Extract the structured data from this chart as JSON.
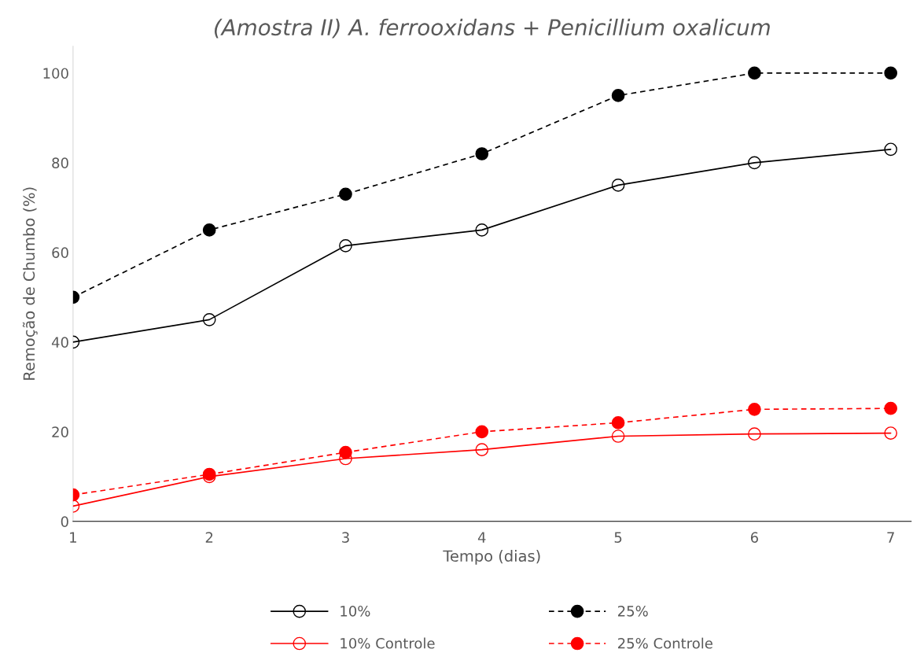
{
  "chart_data": {
    "type": "line",
    "title": "(Amostra II) A. ferrooxidans + Penicillium oxalicum",
    "xlabel": "Tempo (dias)",
    "ylabel": "Remoção de Chumbo (%)",
    "x": [
      1,
      2,
      3,
      4,
      5,
      6,
      7
    ],
    "series": [
      {
        "name": "10%",
        "color": "#000000",
        "marker": "circle",
        "line_style": "solid",
        "values": [
          40,
          45,
          61.5,
          65,
          75,
          80,
          83
        ]
      },
      {
        "name": "25%",
        "color": "#000000",
        "marker": "circle",
        "line_style": "dashed",
        "values": [
          50,
          65,
          73,
          82,
          95,
          100,
          100
        ]
      },
      {
        "name": "10% Controle",
        "color": "#ff0000",
        "marker": "circle",
        "line_style": "solid",
        "values": [
          3.4,
          10,
          14,
          16,
          19,
          19.5,
          19.7
        ]
      },
      {
        "name": "25% Controle",
        "color": "#ff0000",
        "marker": "circle",
        "line_style": "dashed",
        "values": [
          5.9,
          10.5,
          15.4,
          20,
          22,
          25,
          25.2
        ]
      }
    ],
    "xlim": [
      1,
      7.15
    ],
    "xticks": [
      1,
      2,
      3,
      4,
      5,
      6,
      7
    ],
    "ylim": [
      0,
      106
    ],
    "yticks": [
      0,
      20,
      40,
      60,
      80,
      100
    ],
    "grid": false,
    "legend": "bottom"
  }
}
